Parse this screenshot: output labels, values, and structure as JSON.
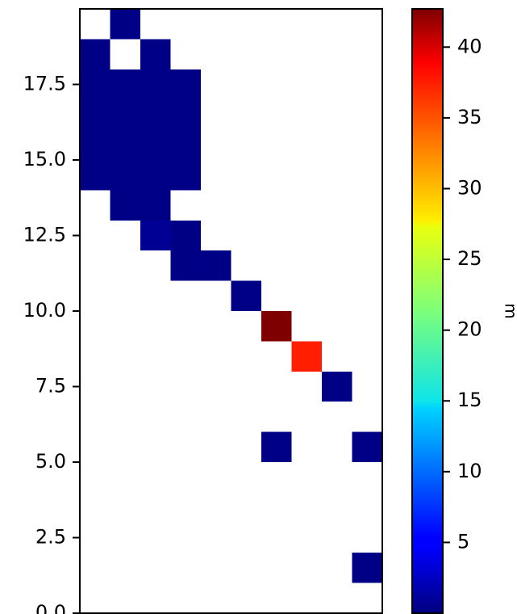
{
  "chart_data": {
    "type": "heatmap",
    "title": "",
    "xlabel": "",
    "ylabel": "",
    "xlim": [
      0,
      10
    ],
    "ylim": [
      0,
      20
    ],
    "yticks": [
      0.0,
      2.5,
      5.0,
      7.5,
      10.0,
      12.5,
      15.0,
      17.5
    ],
    "ytick_labels": [
      "0.0",
      "2.5",
      "5.0",
      "7.5",
      "10.0",
      "12.5",
      "15.0",
      "17.5"
    ],
    "show_x_ticks": false,
    "grid": false,
    "cell_size": 1,
    "cells": [
      {
        "x": 1,
        "y": 19,
        "value": 0.3
      },
      {
        "x": 0,
        "y": 18,
        "value": 0.3
      },
      {
        "x": 2,
        "y": 18,
        "value": 0.3
      },
      {
        "x": 0,
        "y": 17,
        "value": 0.3
      },
      {
        "x": 1,
        "y": 17,
        "value": 0.3
      },
      {
        "x": 2,
        "y": 17,
        "value": 0.3
      },
      {
        "x": 3,
        "y": 17,
        "value": 0.3
      },
      {
        "x": 0,
        "y": 16,
        "value": 0.3
      },
      {
        "x": 1,
        "y": 16,
        "value": 0.3
      },
      {
        "x": 2,
        "y": 16,
        "value": 0.3
      },
      {
        "x": 3,
        "y": 16,
        "value": 0.3
      },
      {
        "x": 0,
        "y": 15,
        "value": 0.3
      },
      {
        "x": 1,
        "y": 15,
        "value": 0.3
      },
      {
        "x": 2,
        "y": 15,
        "value": 0.3
      },
      {
        "x": 3,
        "y": 15,
        "value": 0.3
      },
      {
        "x": 0,
        "y": 14,
        "value": 0.3
      },
      {
        "x": 1,
        "y": 14,
        "value": 0.3
      },
      {
        "x": 2,
        "y": 14,
        "value": 0.3
      },
      {
        "x": 3,
        "y": 14,
        "value": 0.3
      },
      {
        "x": 1,
        "y": 13,
        "value": 0.3
      },
      {
        "x": 2,
        "y": 13,
        "value": 0.3
      },
      {
        "x": 2,
        "y": 12,
        "value": 0.8
      },
      {
        "x": 3,
        "y": 12,
        "value": 0.3
      },
      {
        "x": 3,
        "y": 11,
        "value": 0.3
      },
      {
        "x": 4,
        "y": 11,
        "value": 0.3
      },
      {
        "x": 5,
        "y": 10,
        "value": 0.3
      },
      {
        "x": 6,
        "y": 9,
        "value": 42.7
      },
      {
        "x": 7,
        "y": 8,
        "value": 37.5
      },
      {
        "x": 8,
        "y": 7,
        "value": 0.3
      },
      {
        "x": 6,
        "y": 5,
        "value": 0.3
      },
      {
        "x": 9,
        "y": 5,
        "value": 0.3
      },
      {
        "x": 9,
        "y": 1,
        "value": 0.3
      }
    ],
    "colorbar": {
      "label": "m",
      "colormap": "jet",
      "vmin": 0,
      "vmax": 42.7,
      "ticks": [
        5,
        10,
        15,
        20,
        25,
        30,
        35,
        40
      ],
      "tick_labels": [
        "5",
        "10",
        "15",
        "20",
        "25",
        "30",
        "35",
        "40"
      ]
    }
  }
}
